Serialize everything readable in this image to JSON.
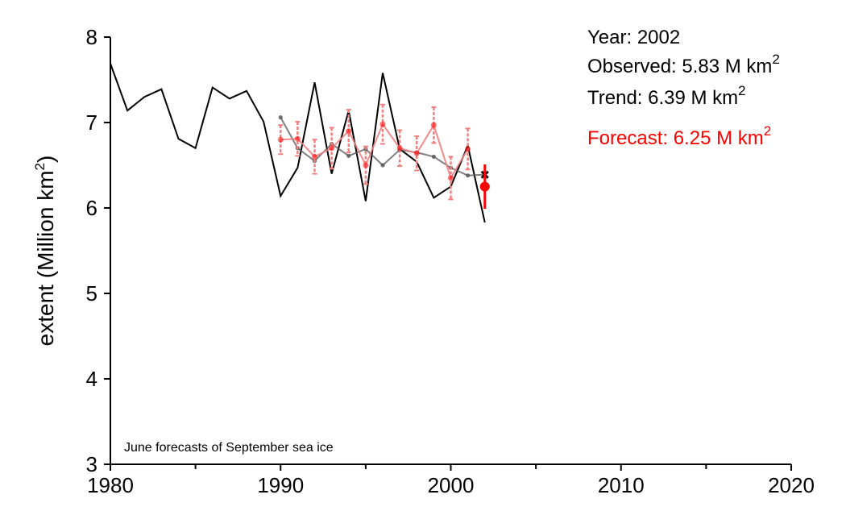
{
  "info": {
    "year": "Year: 2002",
    "observed": "Observed: 5.83 M km",
    "trend": "Trend: 6.39 M km",
    "forecast": "Forecast: 6.25 M km",
    "superscript": "2"
  },
  "note": "June forecasts of September sea ice",
  "colors": {
    "observed": "#000000",
    "trend": "#555555",
    "forecast": "#ff0000",
    "forecast_faded": "#f08080"
  },
  "chart_data": {
    "type": "line",
    "title": "",
    "xlabel": "",
    "ylabel": "extent (Million km",
    "ylabel_sup": "2",
    "ylabel_close": ")",
    "xlim": [
      1980,
      2020
    ],
    "ylim": [
      3,
      8
    ],
    "x_ticks": [
      1980,
      1990,
      2000,
      2010,
      2020
    ],
    "x_minor_ticks": [
      1985,
      1995,
      2005,
      2015
    ],
    "y_ticks": [
      3,
      4,
      5,
      6,
      7,
      8
    ],
    "grid": false,
    "series": [
      {
        "x": [
          1980,
          1981,
          1982,
          1983,
          1984,
          1985,
          1986,
          1987,
          1988,
          1989,
          1990,
          1991,
          1992,
          1993,
          1994,
          1995,
          1996,
          1997,
          1998,
          1999,
          2000,
          2001,
          2002
        ],
        "values": [
          7.69,
          7.14,
          7.3,
          7.39,
          6.81,
          6.7,
          7.41,
          7.28,
          7.37,
          7.01,
          6.14,
          6.47,
          7.47,
          6.4,
          7.14,
          6.08,
          7.58,
          6.69,
          6.54,
          6.12,
          6.25,
          6.73,
          5.83
        ]
      },
      {
        "x": [
          1990,
          1991,
          1992,
          1993,
          1994,
          1995,
          1996,
          1997,
          1998,
          1999,
          2000,
          2001,
          2002
        ],
        "values": [
          7.06,
          6.7,
          6.55,
          6.75,
          6.61,
          6.69,
          6.5,
          6.68,
          6.65,
          6.6,
          6.47,
          6.38,
          6.39
        ]
      },
      {
        "x": [
          1990,
          1991,
          1992,
          1993,
          1994,
          1995,
          1996,
          1997,
          1998,
          1999,
          2000,
          2001
        ],
        "values": [
          6.8,
          6.81,
          6.6,
          6.7,
          6.9,
          6.5,
          6.98,
          6.7,
          6.64,
          6.97,
          6.35,
          6.69
        ],
        "errors": [
          0.17,
          0.2,
          0.2,
          0.24,
          0.25,
          0.22,
          0.23,
          0.21,
          0.2,
          0.21,
          0.25,
          0.24
        ]
      },
      {
        "x": [
          2002
        ],
        "values": [
          6.25
        ],
        "errors": [
          0.26
        ]
      }
    ]
  }
}
